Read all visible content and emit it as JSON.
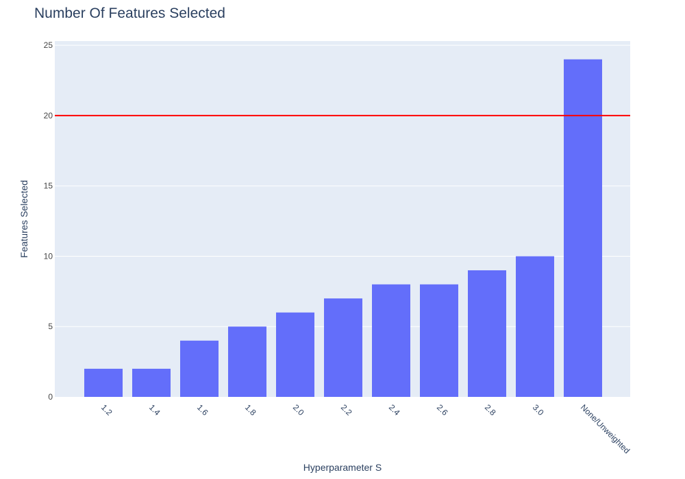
{
  "chart_data": {
    "type": "bar",
    "title": "Number Of Features Selected",
    "xlabel": "Hyperparameter S",
    "ylabel": "Features Selected",
    "categories": [
      "1.2",
      "1.4",
      "1.6",
      "1.8",
      "2.0",
      "2.2",
      "2.4",
      "2.6",
      "2.8",
      "3.0",
      "None/Unweighted"
    ],
    "values": [
      2,
      2,
      4,
      5,
      6,
      7,
      8,
      8,
      9,
      10,
      24
    ],
    "ylim": [
      0,
      25.3
    ],
    "yticks": [
      0,
      5,
      10,
      15,
      20,
      25
    ],
    "reference_line": {
      "y": 20,
      "color": "#ff0000"
    },
    "colors": {
      "bar": "#636efa",
      "plot_background": "#e5ecf6",
      "gridline": "#ffffff",
      "text": "#2a3f5f"
    },
    "grid": true,
    "legend": "none"
  }
}
